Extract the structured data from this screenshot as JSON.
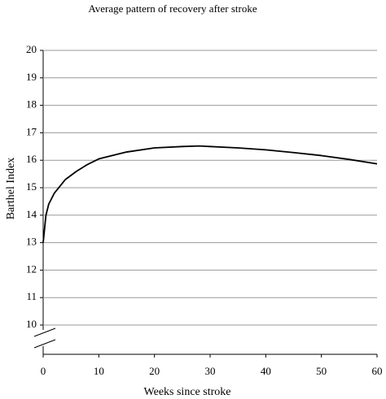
{
  "chart_data": {
    "type": "line",
    "title": "Average pattern of recovery after stroke",
    "x_label": "Weeks since stroke",
    "y_label": "Barthel Index",
    "x": [
      0,
      0.5,
      1,
      2,
      4,
      6,
      8,
      10,
      15,
      20,
      25,
      28,
      30,
      35,
      40,
      45,
      50,
      55,
      60
    ],
    "values": [
      13.0,
      14.0,
      14.4,
      14.8,
      15.3,
      15.6,
      15.85,
      16.05,
      16.3,
      16.45,
      16.5,
      16.52,
      16.5,
      16.45,
      16.38,
      16.28,
      16.17,
      16.03,
      15.87
    ],
    "color": "#000000",
    "xlim": [
      0,
      60
    ],
    "xticks": [
      0,
      10,
      20,
      30,
      40,
      50,
      60
    ],
    "ylim": [
      10,
      20
    ],
    "yticks": [
      10,
      11,
      12,
      13,
      14,
      15,
      16,
      17,
      18,
      19,
      20
    ],
    "grid": true
  }
}
